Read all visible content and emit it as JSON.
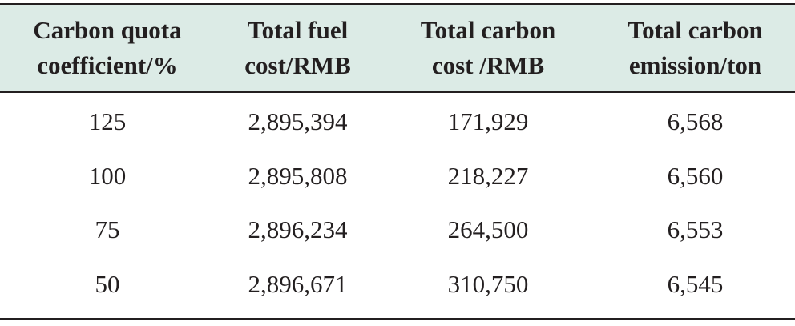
{
  "table": {
    "columns": [
      [
        "Carbon quota",
        "coefficient/%"
      ],
      [
        "Total fuel",
        "cost/RMB"
      ],
      [
        "Total carbon",
        "cost /RMB"
      ],
      [
        "Total carbon",
        "emission/ton"
      ]
    ],
    "rows": [
      [
        "125",
        "2,895,394",
        "171,929",
        "6,568"
      ],
      [
        "100",
        "2,895,808",
        "218,227",
        "6,560"
      ],
      [
        "75",
        "2,896,234",
        "264,500",
        "6,553"
      ],
      [
        "50",
        "2,896,671",
        "310,750",
        "6,545"
      ]
    ],
    "header_bg": "#dcebe6",
    "rule_color": "#231f20"
  }
}
